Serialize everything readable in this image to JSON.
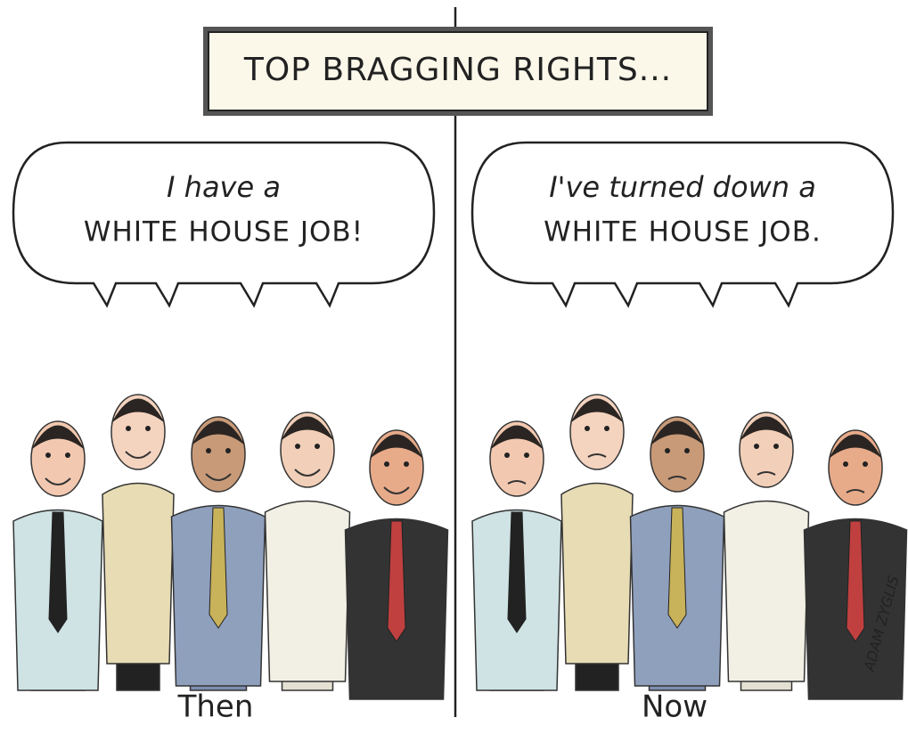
{
  "title": "TOP BRAGGING RIGHTS...",
  "panels": [
    {
      "speech": [
        "I have a",
        "WHITE HOUSE JOB!"
      ],
      "caption": "Then"
    },
    {
      "speech": [
        "I've turned down a",
        "WHITE HOUSE JOB."
      ],
      "caption": "Now"
    }
  ],
  "signature": "ADAM ZYGLIS"
}
